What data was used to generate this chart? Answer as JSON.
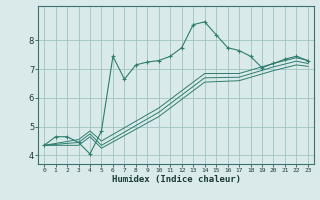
{
  "background_color": "#daeaea",
  "grid_color": "#a0c4c4",
  "line_color": "#2e7d6e",
  "xlabel": "Humidex (Indice chaleur)",
  "xlim": [
    -0.5,
    23.5
  ],
  "ylim": [
    3.7,
    9.2
  ],
  "yticks": [
    4,
    5,
    6,
    7,
    8
  ],
  "xticks": [
    0,
    1,
    2,
    3,
    4,
    5,
    6,
    7,
    8,
    9,
    10,
    11,
    12,
    13,
    14,
    15,
    16,
    17,
    18,
    19,
    20,
    21,
    22,
    23
  ],
  "series_main": {
    "x": [
      0,
      1,
      2,
      3,
      4,
      5,
      6,
      7,
      8,
      9,
      10,
      11,
      12,
      13,
      14,
      15,
      16,
      17,
      18,
      19,
      20,
      21,
      22,
      23
    ],
    "y": [
      4.35,
      4.65,
      4.65,
      4.45,
      4.05,
      4.85,
      7.45,
      6.65,
      7.15,
      7.25,
      7.3,
      7.45,
      7.75,
      8.55,
      8.65,
      8.2,
      7.75,
      7.65,
      7.45,
      7.05,
      7.2,
      7.35,
      7.45,
      7.3
    ]
  },
  "series_lines": [
    {
      "x": [
        0,
        3,
        4,
        5,
        10,
        14,
        17,
        20,
        22,
        23
      ],
      "y": [
        4.35,
        4.55,
        4.85,
        4.5,
        5.65,
        6.85,
        6.85,
        7.2,
        7.4,
        7.3
      ]
    },
    {
      "x": [
        0,
        3,
        4,
        5,
        10,
        14,
        17,
        20,
        22,
        23
      ],
      "y": [
        4.35,
        4.45,
        4.75,
        4.35,
        5.5,
        6.7,
        6.72,
        7.08,
        7.28,
        7.2
      ]
    },
    {
      "x": [
        0,
        3,
        4,
        5,
        10,
        14,
        17,
        20,
        22,
        23
      ],
      "y": [
        4.35,
        4.35,
        4.65,
        4.25,
        5.35,
        6.55,
        6.6,
        6.95,
        7.15,
        7.1
      ]
    }
  ]
}
